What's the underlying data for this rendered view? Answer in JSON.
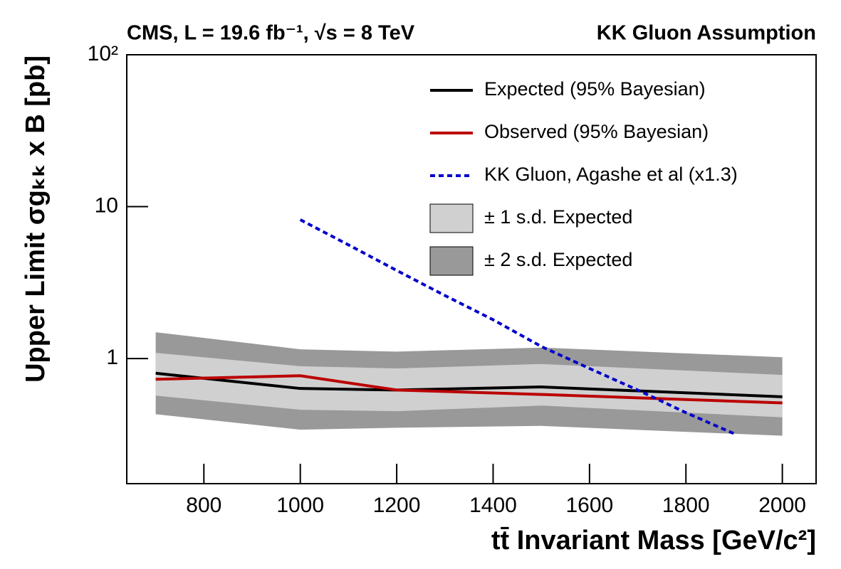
{
  "chart_data": {
    "type": "line",
    "title": "CMS, L = 19.6 fb⁻¹, √s = 8 TeV",
    "subtitle": "KK Gluon Assumption",
    "x_label": "tt̄ Invariant Mass [GeV/c²]",
    "y_label": "Upper Limit σgₖₖ x B [pb]",
    "log_y": true,
    "legend": "upper right",
    "xlim": [
      640,
      2070
    ],
    "xticks": [
      800,
      1000,
      1200,
      1400,
      1600,
      1800,
      2000
    ],
    "ylim": [
      0.15,
      100
    ],
    "yticks": [
      1,
      10,
      {
        "value": 100,
        "label": "10²"
      }
    ],
    "x": [
      700,
      1000,
      1200,
      1500,
      2000
    ],
    "bands": [
      {
        "name": "± 2 s.d. Expected",
        "color": "#999999",
        "upper": [
          1.49,
          1.15,
          1.11,
          1.18,
          1.02
        ],
        "lower": [
          0.43,
          0.34,
          0.35,
          0.36,
          0.31
        ]
      },
      {
        "name": "± 1 s.d. Expected",
        "color": "#d0d0d0",
        "upper": [
          1.09,
          0.89,
          0.86,
          0.92,
          0.78
        ],
        "lower": [
          0.57,
          0.46,
          0.45,
          0.49,
          0.41
        ]
      }
    ],
    "series": [
      {
        "name": "Expected (95% Bayesian)",
        "color": "#000000",
        "values": [
          0.8,
          0.635,
          0.62,
          0.65,
          0.56
        ]
      },
      {
        "name": "Observed (95% Bayesian)",
        "color": "#bb0000",
        "values": [
          0.73,
          0.77,
          0.62,
          0.58,
          0.51
        ]
      },
      {
        "name": "KK Gluon, Agashe et al (x1.3)",
        "color": "#0000cc",
        "dashed": true,
        "x": [
          1000,
          1100,
          1200,
          1300,
          1400,
          1500,
          1600,
          1700,
          1800,
          1900
        ],
        "values": [
          8.2,
          5.6,
          3.8,
          2.6,
          1.8,
          1.2,
          0.86,
          0.62,
          0.44,
          0.32
        ]
      }
    ]
  }
}
